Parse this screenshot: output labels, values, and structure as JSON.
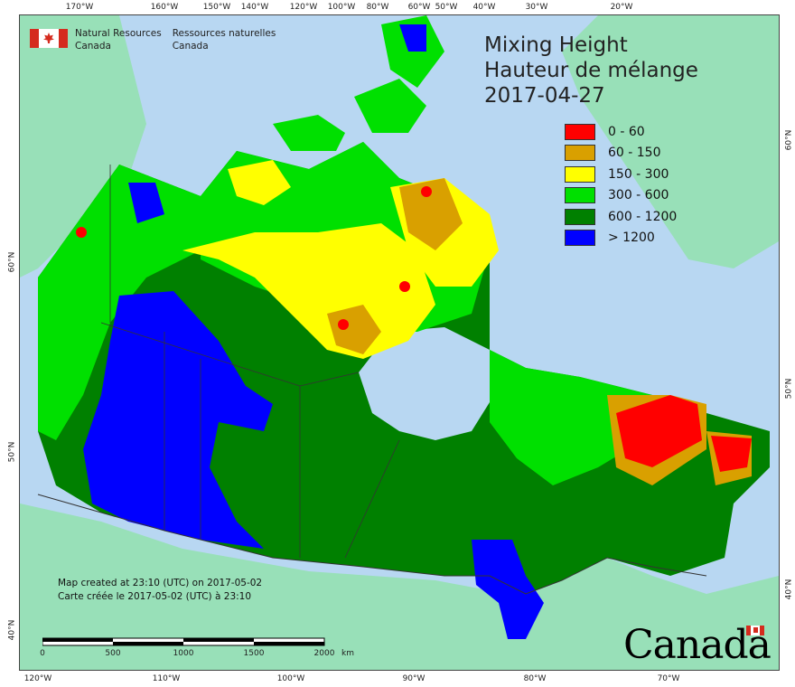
{
  "agency": {
    "en_line1": "Natural Resources",
    "en_line2": "Canada",
    "fr_line1": "Ressources naturelles",
    "fr_line2": "Canada"
  },
  "title": {
    "line1": "Mixing Height",
    "line2": "Hauteur de mélange",
    "line3": "2017-04-27"
  },
  "legend": [
    {
      "label": "0 - 60",
      "color": "#ff0000"
    },
    {
      "label": "60 - 150",
      "color": "#d9a000"
    },
    {
      "label": "150 - 300",
      "color": "#ffff00"
    },
    {
      "label": "300 - 600",
      "color": "#00e000"
    },
    {
      "label": "600 - 1200",
      "color": "#008000"
    },
    {
      "label": "> 1200",
      "color": "#0000ff"
    }
  ],
  "ticks": {
    "top": [
      "170°W",
      "160°W",
      "150°W",
      "140°W",
      "120°W",
      "100°W",
      "80°W",
      "60°W",
      "50°W",
      "40°W",
      "30°W",
      "20°W"
    ],
    "bottom": [
      "120°W",
      "110°W",
      "100°W",
      "90°W",
      "80°W",
      "70°W"
    ],
    "left": [
      "60°N",
      "50°N",
      "40°N"
    ],
    "right": [
      "60°N",
      "50°N",
      "40°N"
    ]
  },
  "credit": {
    "line1": "Map created at 23:10 (UTC) on 2017-05-02",
    "line2": "Carte créée le 2017-05-02 (UTC) à 23:10"
  },
  "scale": {
    "labels": [
      "0",
      "500",
      "1000",
      "1500",
      "2000"
    ],
    "unit": "km"
  },
  "wordmark": "Canada",
  "colors": {
    "ocean": "#b8d7f2",
    "land_outside": "#98e0b8",
    "boundary": "#333333"
  }
}
